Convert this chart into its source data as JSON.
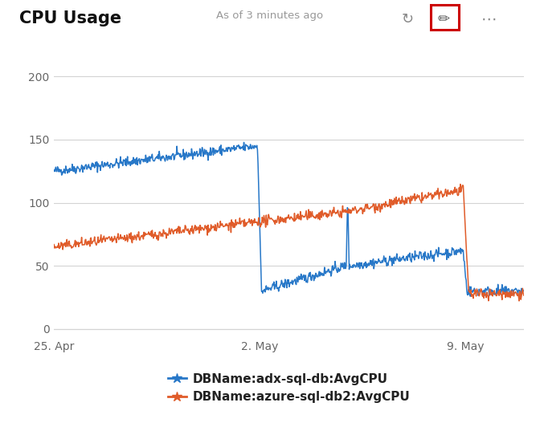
{
  "title": "CPU Usage",
  "subtitle": "As of 3 minutes ago",
  "background_color": "#ffffff",
  "plot_bg_color": "#ffffff",
  "x_ticks_labels": [
    "25. Apr",
    "2. May",
    "9. May"
  ],
  "y_ticks": [
    0,
    50,
    100,
    150,
    200
  ],
  "y_lim": [
    -5,
    215
  ],
  "legend": [
    {
      "label": "DBName:adx-sql-db:AvgCPU",
      "color": "#2878c8",
      "marker": "*"
    },
    {
      "label": "DBName:azure-sql-db2:AvgCPU",
      "color": "#e05c2a",
      "marker": "*"
    }
  ],
  "grid_color": "#d3d3d3",
  "title_fontsize": 15,
  "axis_fontsize": 10,
  "legend_fontsize": 11,
  "blue_color": "#2878c8",
  "orange_color": "#e05c2a",
  "edit_box_color": "#cc0000",
  "t_may2": 0.4375,
  "t_may5": 0.625,
  "t_may9": 0.875
}
